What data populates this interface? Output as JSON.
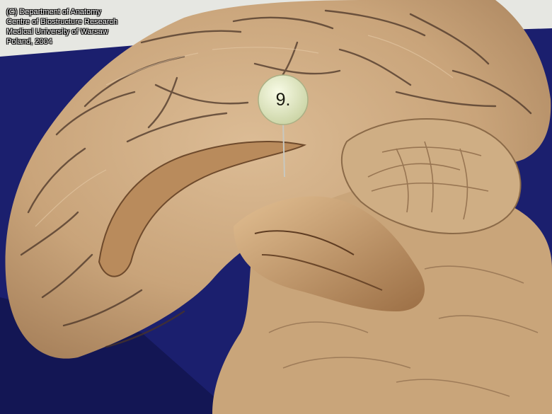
{
  "caption": {
    "lines": [
      "(C) Department of Anatomy",
      "Centre of Biostructure Research",
      "Medical University of Warsaw",
      "Poland, 2004"
    ]
  },
  "pin": {
    "label": "9."
  },
  "colors": {
    "background_wall": "#e6e7e2",
    "background_cloth": "#1b1f6e",
    "tissue_light": "#d6b48c",
    "tissue_mid": "#c39d72",
    "tissue_dark": "#7a5535",
    "sulcus_shadow": "#3c2c24",
    "pin_head": "#e9f0c8"
  }
}
